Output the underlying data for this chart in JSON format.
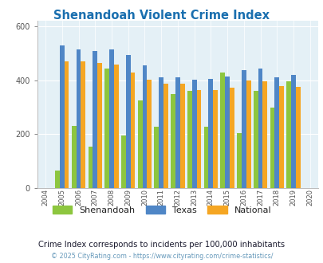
{
  "title": "Shenandoah Violent Crime Index",
  "years": [
    2004,
    2005,
    2006,
    2007,
    2008,
    2009,
    2010,
    2011,
    2012,
    2013,
    2014,
    2015,
    2016,
    2017,
    2018,
    2019,
    2020
  ],
  "shenandoah": [
    null,
    65,
    230,
    155,
    445,
    195,
    325,
    228,
    350,
    360,
    228,
    430,
    205,
    360,
    300,
    395,
    null
  ],
  "texas": [
    null,
    530,
    515,
    510,
    515,
    495,
    455,
    410,
    410,
    403,
    405,
    415,
    438,
    443,
    410,
    420,
    null
  ],
  "national": [
    null,
    470,
    470,
    465,
    458,
    428,
    403,
    387,
    387,
    365,
    365,
    372,
    398,
    395,
    378,
    375,
    null
  ],
  "bar_colors": {
    "shenandoah": "#8dc63f",
    "texas": "#4f86c6",
    "national": "#f5a623"
  },
  "ylim": [
    0,
    620
  ],
  "yticks": [
    0,
    200,
    400,
    600
  ],
  "plot_bg": "#e4f0f6",
  "footer_text": "© 2025 CityRating.com - https://www.cityrating.com/crime-statistics/",
  "note_text": "Crime Index corresponds to incidents per 100,000 inhabitants",
  "legend_labels": [
    "Shenandoah",
    "Texas",
    "National"
  ]
}
